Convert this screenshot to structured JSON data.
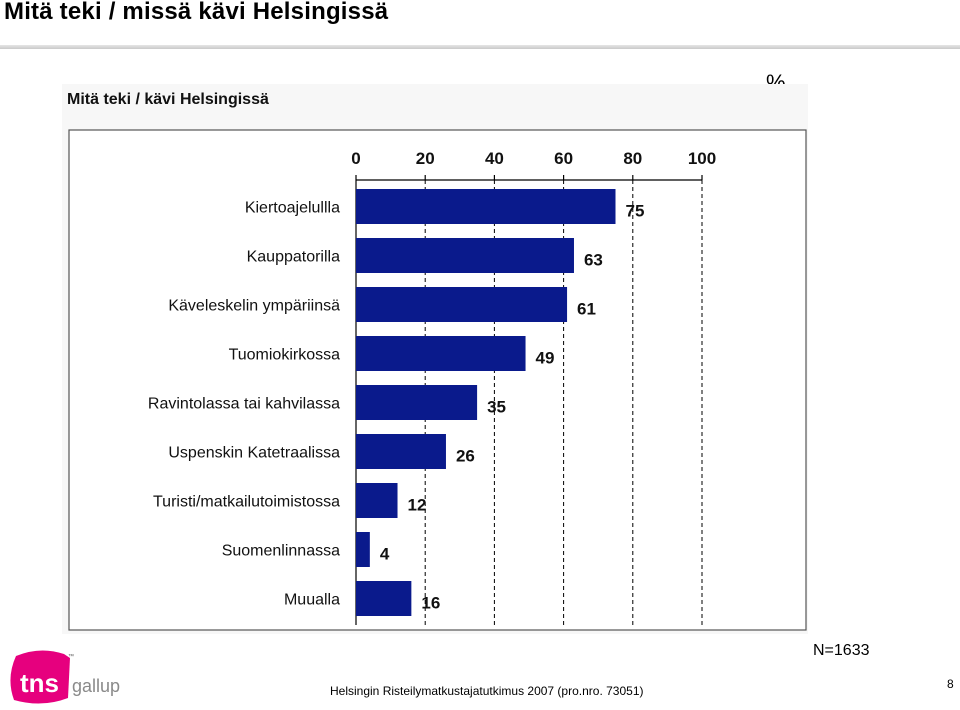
{
  "slide": {
    "title": "Mitä teki / missä kävi Helsingissä",
    "percent_sign": "%",
    "n_label": "N=1633",
    "footnote": "Helsingin Risteilymatkustajatutkimus 2007 (pro.nro. 73051)",
    "page_number": "8"
  },
  "logo": {
    "brand_word": "tns",
    "sub_word": "gallup",
    "tm": "™",
    "brand_color": "#e6007e",
    "sub_color": "#8a8a8a"
  },
  "chart_data": {
    "type": "bar",
    "orientation": "horizontal",
    "title": "Mitä teki / kävi Helsingissä",
    "categories": [
      "Kiertoajelullla",
      "Kauppatorilla",
      "Käveleskelin ympäriinsä",
      "Tuomiokirkossa",
      "Ravintolassa tai kahvilassa",
      "Uspenskin Katetraalissa",
      "Turisti/matkailutoimistossa",
      "Suomenlinnassa",
      "Muualla"
    ],
    "values": [
      75,
      63,
      61,
      49,
      35,
      26,
      12,
      4,
      16
    ],
    "xlim": [
      0,
      100
    ],
    "xticks": [
      "0",
      "20",
      "40",
      "60",
      "80",
      "100"
    ],
    "x_axis_position": "top",
    "grid": "vertical dashed",
    "bar_color": "#0a1a8c"
  }
}
